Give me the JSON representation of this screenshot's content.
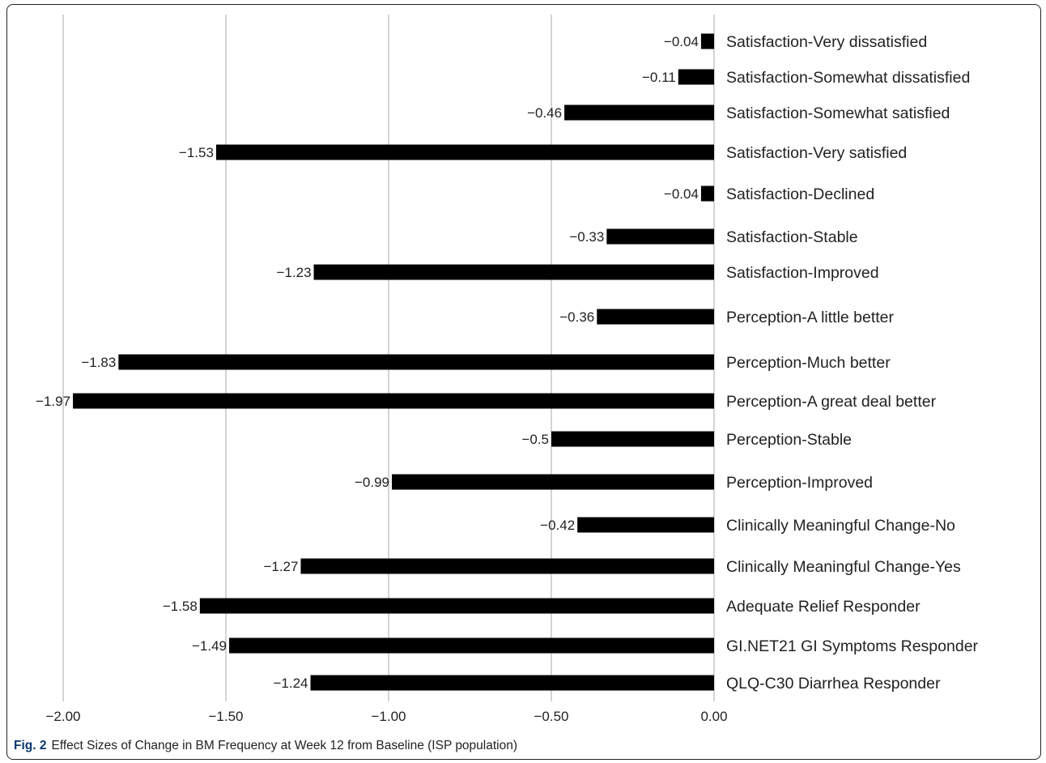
{
  "caption": {
    "lead": "Fig. 2",
    "text": "Effect Sizes of Change in BM Frequency at Week 12 from Baseline (ISP population)"
  },
  "chart_data": {
    "type": "bar",
    "orientation": "horizontal",
    "title": "",
    "xlabel": "",
    "ylabel": "",
    "xlim": [
      -2.0,
      0.0
    ],
    "xticks": [
      -2.0,
      -1.5,
      -1.0,
      -0.5,
      0.0
    ],
    "xtick_labels": [
      "−2.00",
      "−1.50",
      "−1.00",
      "−0.50",
      "0.00"
    ],
    "grid": "vertical",
    "bar_color": "#000000",
    "categories": [
      "Satisfaction-Very dissatisfied",
      "Satisfaction-Somewhat dissatisfied",
      "Satisfaction-Somewhat satisfied",
      "Satisfaction-Very satisfied",
      "Satisfaction-Declined",
      "Satisfaction-Stable",
      "Satisfaction-Improved",
      "Perception-A little better",
      "Perception-Much  better",
      "Perception-A great deal better",
      "Perception-Stable",
      "Perception-Improved",
      "Clinically Meaningful Change-No",
      "Clinically Meaningful Change-Yes",
      "Adequate  Relief Responder",
      "GI.NET21 GI Symptoms  Responder",
      "QLQ-C30 Diarrhea Responder"
    ],
    "values": [
      -0.04,
      -0.11,
      -0.46,
      -1.53,
      -0.04,
      -0.33,
      -1.23,
      -0.36,
      -1.83,
      -1.97,
      -0.5,
      -0.99,
      -0.42,
      -1.27,
      -1.58,
      -1.49,
      -1.24
    ],
    "value_labels": [
      "−0.04",
      "−0.11",
      "−0.46",
      "−1.53",
      "−0.04",
      "−0.33",
      "−1.23",
      "−0.36",
      "−1.83",
      "−1.97",
      "−0.5",
      "−0.99",
      "−0.42",
      "−1.27",
      "−1.58",
      "−1.49",
      "−1.24"
    ]
  }
}
